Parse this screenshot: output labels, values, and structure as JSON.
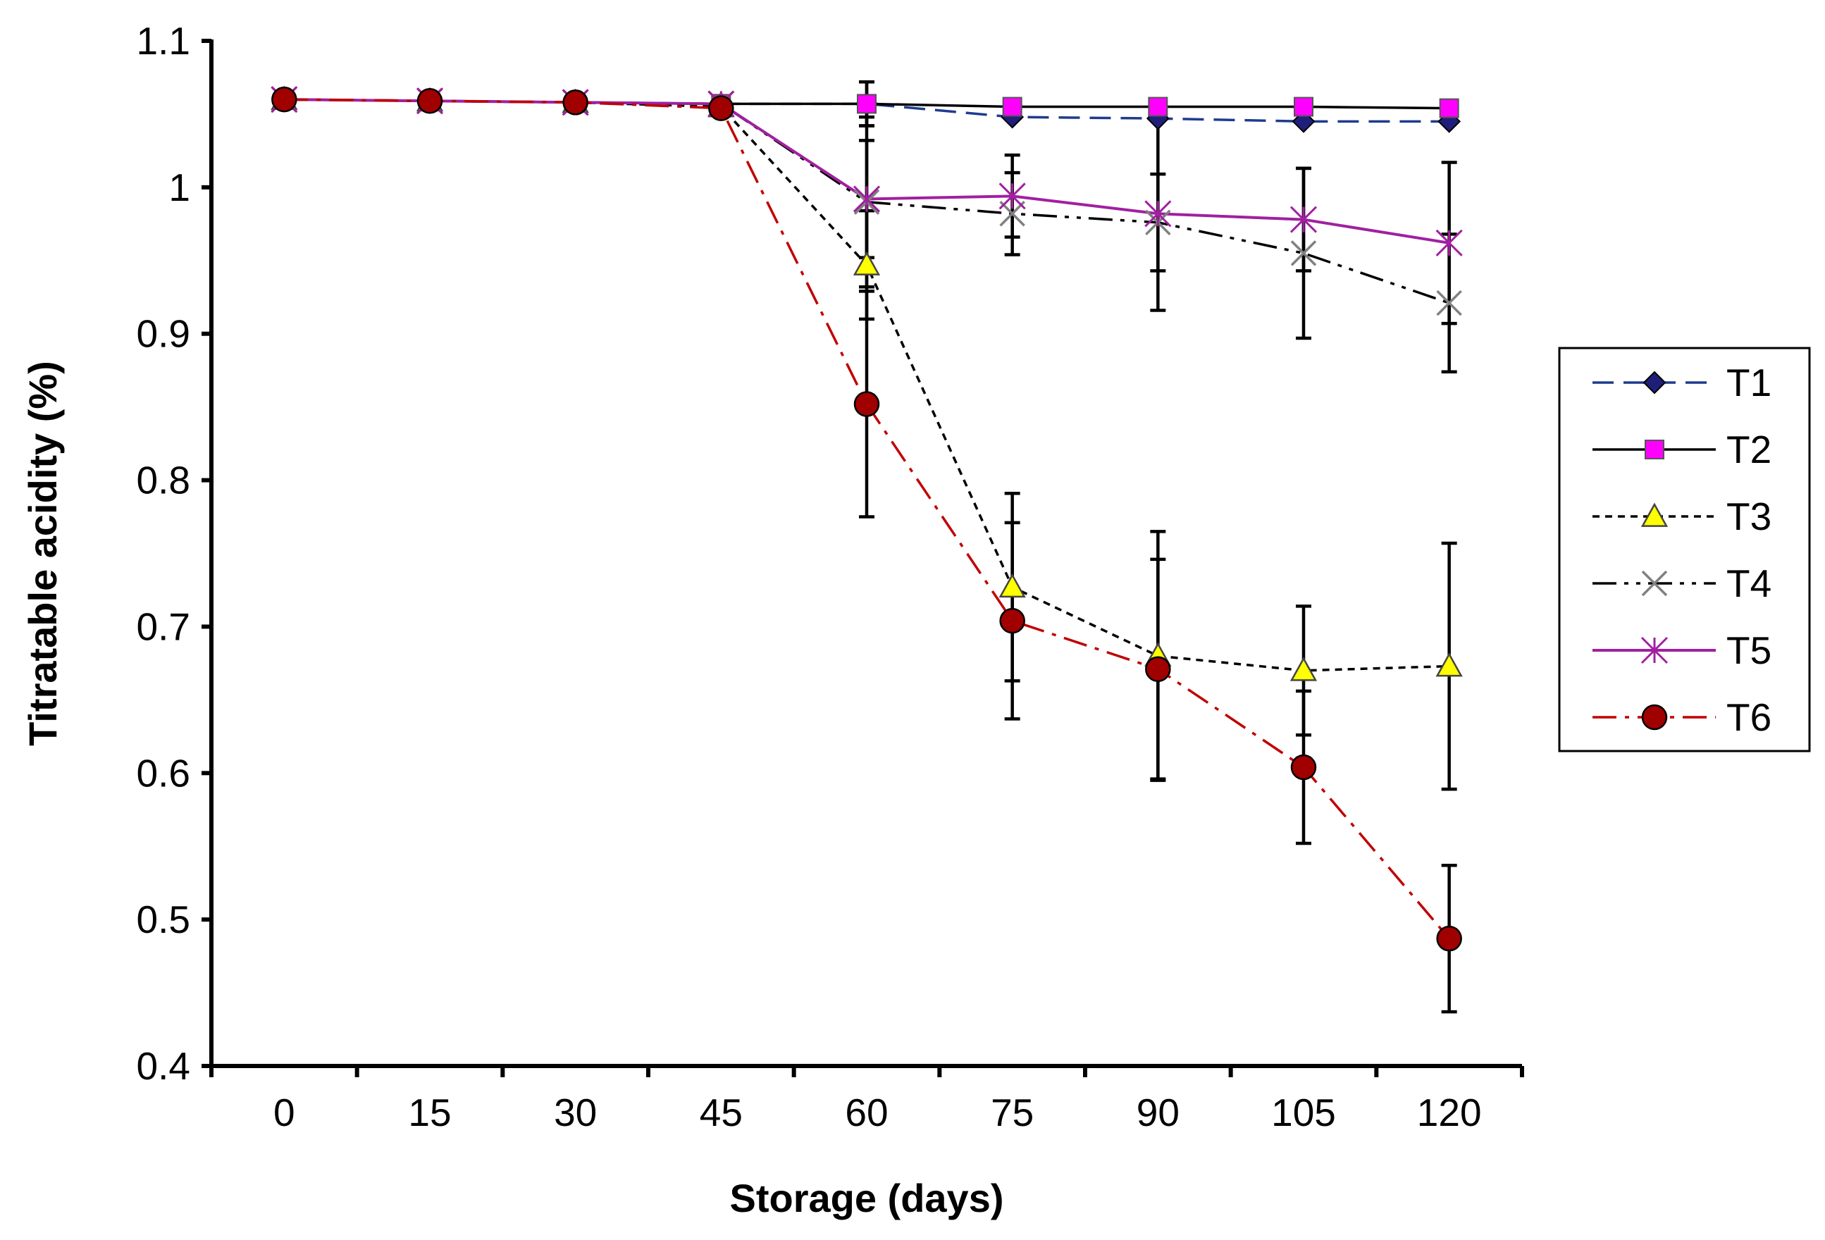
{
  "chart_data": {
    "type": "line",
    "title": "",
    "xlabel": "Storage (days)",
    "ylabel": "Titratable acidity (%)",
    "x": [
      0,
      15,
      30,
      45,
      60,
      75,
      90,
      105,
      120
    ],
    "x_tick_labels": [
      "0",
      "15",
      "30",
      "45",
      "60",
      "75",
      "90",
      "105",
      "120"
    ],
    "ylim": [
      0.4,
      1.1
    ],
    "y_ticks": [
      0.4,
      0.5,
      0.6,
      0.7,
      0.8,
      0.9,
      1.0,
      1.1
    ],
    "y_tick_labels": [
      "0.4",
      "0.5",
      "0.6",
      "0.7",
      "0.8",
      "0.9",
      "1",
      "1.1"
    ],
    "grid": false,
    "legend_position": "right",
    "series": [
      {
        "name": "T1",
        "color": "#1f3b8f",
        "marker_fill": "#1f1f7a",
        "line_style": "dashed",
        "marker": "diamond",
        "values": [
          1.06,
          1.059,
          1.058,
          1.057,
          1.057,
          1.048,
          1.047,
          1.045,
          1.045
        ],
        "errors": [
          0,
          0,
          0,
          0,
          0.015,
          0,
          0,
          0,
          0
        ]
      },
      {
        "name": "T2",
        "color": "#000000",
        "marker_fill": "#ff00ff",
        "line_style": "solid",
        "marker": "square",
        "values": [
          1.06,
          1.059,
          1.058,
          1.057,
          1.057,
          1.055,
          1.055,
          1.055,
          1.054
        ],
        "errors": [
          0,
          0,
          0,
          0,
          0.015,
          0,
          0,
          0,
          0
        ]
      },
      {
        "name": "T3",
        "color": "#000000",
        "marker_fill": "#ffff00",
        "line_style": "dotted",
        "marker": "triangle",
        "values": [
          1.06,
          1.059,
          1.058,
          1.055,
          0.947,
          0.727,
          0.68,
          0.67,
          0.673
        ],
        "errors": [
          0,
          0,
          0,
          0,
          0.037,
          0.064,
          0.085,
          0.044,
          0.084
        ]
      },
      {
        "name": "T4",
        "color": "#000000",
        "marker_fill": "#ffffff",
        "line_style": "dash-dot-dot",
        "marker": "x",
        "values": [
          1.06,
          1.059,
          1.058,
          1.057,
          0.99,
          0.982,
          0.976,
          0.955,
          0.921
        ],
        "errors": [
          0,
          0,
          0,
          0,
          0.058,
          0.028,
          0.033,
          0.058,
          0.047
        ]
      },
      {
        "name": "T5",
        "color": "#a020a0",
        "marker_fill": "#ffffff",
        "line_style": "solid",
        "marker": "asterisk",
        "values": [
          1.06,
          1.059,
          1.058,
          1.057,
          0.992,
          0.994,
          0.982,
          0.978,
          0.962
        ],
        "errors": [
          0,
          0,
          0,
          0,
          0.04,
          0.028,
          0.066,
          0.035,
          0.055
        ]
      },
      {
        "name": "T6",
        "color": "#c00000",
        "marker_fill": "#a00000",
        "line_style": "dash-dot",
        "marker": "circle",
        "values": [
          1.06,
          1.059,
          1.058,
          1.054,
          0.852,
          0.704,
          0.671,
          0.604,
          0.487
        ],
        "errors": [
          0,
          0,
          0,
          0,
          0.077,
          0.067,
          0.075,
          0.052,
          0.05
        ]
      }
    ]
  }
}
